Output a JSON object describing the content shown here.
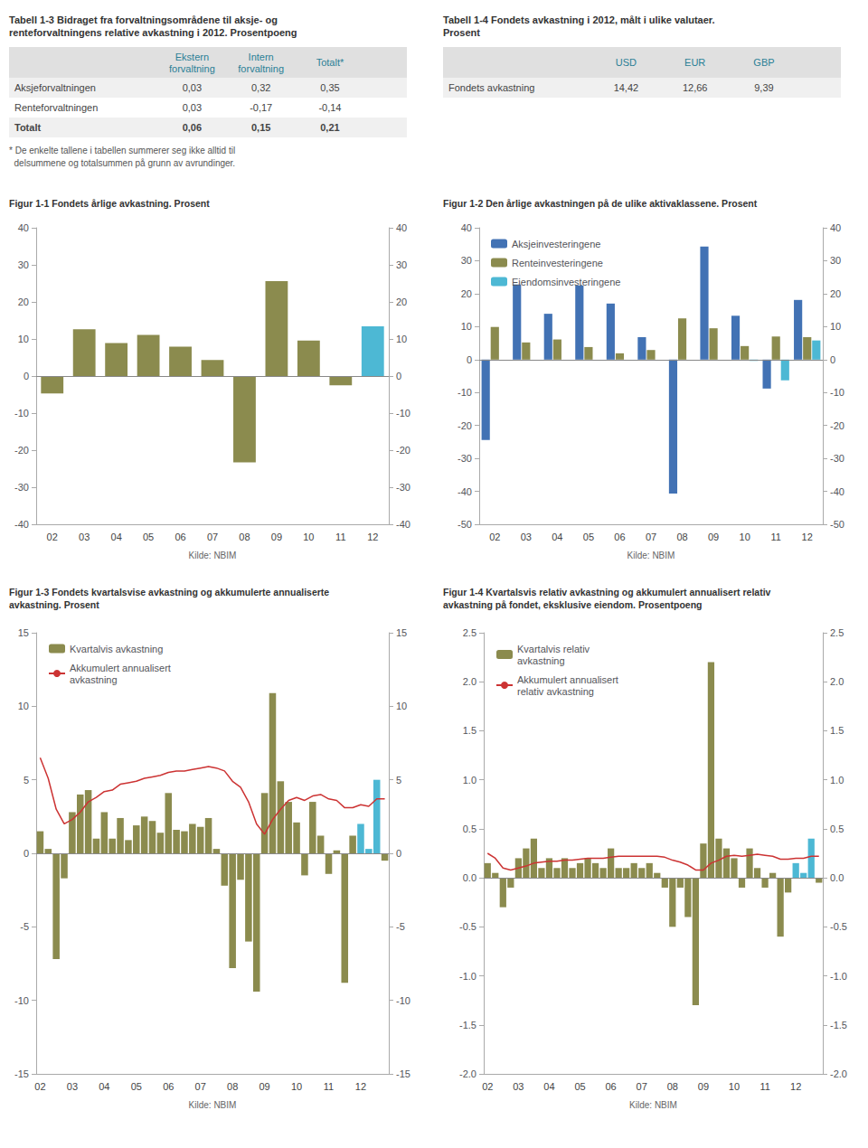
{
  "chart_data": [
    {
      "type": "table",
      "title": "Tabell 1-3 Bidraget fra forvaltningsområdene til aksje- og\nrenteforvaltningens relative avkastning i 2012. Prosentpoeng",
      "columns": [
        null,
        "Ekstern\nforvaltning",
        "Intern\nforvaltning",
        "Totalt*"
      ],
      "rows": [
        [
          "Aksjeforvaltningen",
          "0,03",
          "0,32",
          "0,35"
        ],
        [
          "Renteforvaltningen",
          "0,03",
          "-0,17",
          "-0,14"
        ],
        [
          "Totalt",
          "0,06",
          "0,15",
          "0,21"
        ]
      ],
      "annotations": [
        "* De enkelte tallene i tabellen summerer seg ikke alltid til",
        "  delsummene og totalsummen på grunn av avrundinger."
      ]
    },
    {
      "type": "table",
      "title": "Tabell 1-4 Fondets avkastning i 2012, målt i ulike valutaer.\nProsent",
      "columns": [
        null,
        "USD",
        "EUR",
        "GBP"
      ],
      "rows": [
        [
          "Fondets avkastning",
          "14,42",
          "12,66",
          "9,39"
        ]
      ]
    },
    {
      "type": "bar",
      "title": "Figur 1-1 Fondets årlige avkastning. Prosent",
      "categories": [
        "02",
        "03",
        "04",
        "05",
        "06",
        "07",
        "08",
        "09",
        "10",
        "11",
        "12"
      ],
      "values": [
        -4.7,
        12.6,
        8.9,
        11.1,
        7.9,
        4.3,
        -23.3,
        25.6,
        9.6,
        -2.5,
        13.4
      ],
      "colors": [
        "#8b8b4e",
        "#8b8b4e",
        "#8b8b4e",
        "#8b8b4e",
        "#8b8b4e",
        "#8b8b4e",
        "#8b8b4e",
        "#8b8b4e",
        "#8b8b4e",
        "#8b8b4e",
        "#4db8d4"
      ],
      "ylim": [
        -40,
        40
      ],
      "yticks": [
        -40,
        -30,
        -20,
        -10,
        0,
        10,
        20,
        30,
        40
      ],
      "y2lim": [
        -40,
        40
      ],
      "y2ticks": [
        -40,
        -30,
        -20,
        -10,
        0,
        10,
        20,
        30,
        40
      ],
      "grid": false,
      "annotations": [
        "Kilde: NBIM"
      ]
    },
    {
      "type": "bar",
      "title": "Figur 1-2 Den årlige avkastningen på de ulike aktivaklassene. Prosent",
      "categories": [
        "02",
        "03",
        "04",
        "05",
        "06",
        "07",
        "08",
        "09",
        "10",
        "11",
        "12"
      ],
      "series": [
        {
          "name": "Aksjeinvesteringene",
          "color": "#4272b4",
          "values": [
            -24.4,
            22.8,
            13.9,
            22.5,
            17.0,
            6.8,
            -40.7,
            34.3,
            13.3,
            -8.8,
            18.1
          ]
        },
        {
          "name": "Renteinvesteringene",
          "color": "#8b8b4e",
          "values": [
            9.9,
            5.2,
            6.1,
            3.8,
            1.9,
            2.9,
            12.5,
            9.5,
            4.1,
            7.0,
            6.8
          ]
        },
        {
          "name": "Eiendomsinvesteringene",
          "color": "#4db8d4",
          "values": [
            0,
            0,
            0,
            0,
            0,
            0,
            0,
            0,
            -0.4,
            -6.3,
            5.8
          ]
        }
      ],
      "ylim": [
        -50,
        40
      ],
      "yticks": [
        -50,
        -40,
        -30,
        -20,
        -10,
        0,
        10,
        20,
        30,
        40
      ],
      "y2lim": [
        -50,
        40
      ],
      "y2ticks": [
        -50,
        -40,
        -30,
        -20,
        -10,
        0,
        10,
        20,
        30,
        40
      ],
      "grid": false,
      "legend": "upper left",
      "annotations": [
        "Kilde: NBIM"
      ]
    },
    {
      "type": "bar",
      "title": "Figur 1-3 Fondets kvartalsvise avkastning og akkumulerte annualiserte\navkastning. Prosent",
      "categories": [
        "02",
        null,
        null,
        null,
        "03",
        null,
        null,
        null,
        "04",
        null,
        null,
        null,
        "05",
        null,
        null,
        null,
        "06",
        null,
        null,
        null,
        "07",
        null,
        null,
        null,
        "08",
        null,
        null,
        null,
        "09",
        null,
        null,
        null,
        "10",
        null,
        null,
        null,
        "11",
        null,
        null,
        null,
        "12",
        null,
        null,
        null
      ],
      "series": [
        {
          "name": "Kvartalvis avkastning",
          "type": "bar",
          "color": "#8b8b4e",
          "colors": [
            "#8b8b4e",
            "#8b8b4e",
            "#8b8b4e",
            "#8b8b4e",
            "#8b8b4e",
            "#8b8b4e",
            "#8b8b4e",
            "#8b8b4e",
            "#8b8b4e",
            "#8b8b4e",
            "#8b8b4e",
            "#8b8b4e",
            "#8b8b4e",
            "#8b8b4e",
            "#8b8b4e",
            "#8b8b4e",
            "#8b8b4e",
            "#8b8b4e",
            "#8b8b4e",
            "#8b8b4e",
            "#8b8b4e",
            "#8b8b4e",
            "#8b8b4e",
            "#8b8b4e",
            "#8b8b4e",
            "#8b8b4e",
            "#8b8b4e",
            "#8b8b4e",
            "#8b8b4e",
            "#8b8b4e",
            "#8b8b4e",
            "#8b8b4e",
            "#8b8b4e",
            "#8b8b4e",
            "#8b8b4e",
            "#8b8b4e",
            "#8b8b4e",
            "#8b8b4e",
            "#8b8b4e",
            "#8b8b4e",
            "#4db8d4",
            "#4db8d4",
            "#4db8d4",
            "#8b8b4e"
          ],
          "values": [
            1.5,
            0.3,
            -7.2,
            -1.7,
            2.8,
            4.0,
            4.3,
            1.0,
            2.8,
            1.0,
            2.4,
            0.9,
            1.9,
            2.5,
            2.2,
            1.4,
            4.1,
            1.6,
            1.5,
            2.0,
            1.8,
            2.4,
            0.3,
            -2.2,
            -7.8,
            -1.8,
            -6.0,
            -9.4,
            4.1,
            10.9,
            4.9,
            3.5,
            2.1,
            -1.5,
            3.5,
            1.2,
            -1.4,
            0.2,
            -8.8,
            1.2,
            2.0,
            0.3,
            5.0,
            -0.5
          ]
        },
        {
          "name": "Akkumulert annualisert\navkastning",
          "type": "line",
          "color": "#cc3333",
          "values": [
            6.5,
            5.1,
            3.0,
            2.0,
            2.3,
            2.8,
            3.5,
            3.8,
            4.2,
            4.3,
            4.7,
            4.8,
            4.9,
            5.1,
            5.2,
            5.3,
            5.5,
            5.6,
            5.6,
            5.7,
            5.8,
            5.9,
            5.8,
            5.6,
            4.9,
            4.5,
            3.5,
            2.0,
            1.3,
            2.3,
            3.0,
            3.6,
            3.8,
            3.6,
            3.9,
            4.0,
            3.7,
            3.6,
            3.1,
            3.1,
            3.3,
            3.2,
            3.7,
            3.7
          ]
        }
      ],
      "ylim": [
        -15,
        15
      ],
      "yticks": [
        -15,
        -10,
        -5,
        0,
        5,
        10,
        15
      ],
      "y2lim": [
        -15,
        15
      ],
      "y2ticks": [
        -15,
        -10,
        -5,
        0,
        5,
        10,
        15
      ],
      "grid": false,
      "legend": "upper left",
      "annotations": [
        "Kilde: NBIM"
      ]
    },
    {
      "type": "bar",
      "title": "Figur 1-4 Kvartalsvis relativ avkastning og akkumulert annualisert relativ\navkastning på fondet, eksklusive eiendom. Prosentpoeng",
      "categories": [
        "02",
        null,
        null,
        null,
        "03",
        null,
        null,
        null,
        "04",
        null,
        null,
        null,
        "05",
        null,
        null,
        null,
        "06",
        null,
        null,
        null,
        "07",
        null,
        null,
        null,
        "08",
        null,
        null,
        null,
        "09",
        null,
        null,
        null,
        "10",
        null,
        null,
        null,
        "11",
        null,
        null,
        null,
        "12",
        null,
        null,
        null
      ],
      "series": [
        {
          "name": "Kvartalvis relativ\navkastning",
          "type": "bar",
          "color": "#8b8b4e",
          "colors": [
            "#8b8b4e",
            "#8b8b4e",
            "#8b8b4e",
            "#8b8b4e",
            "#8b8b4e",
            "#8b8b4e",
            "#8b8b4e",
            "#8b8b4e",
            "#8b8b4e",
            "#8b8b4e",
            "#8b8b4e",
            "#8b8b4e",
            "#8b8b4e",
            "#8b8b4e",
            "#8b8b4e",
            "#8b8b4e",
            "#8b8b4e",
            "#8b8b4e",
            "#8b8b4e",
            "#8b8b4e",
            "#8b8b4e",
            "#8b8b4e",
            "#8b8b4e",
            "#8b8b4e",
            "#8b8b4e",
            "#8b8b4e",
            "#8b8b4e",
            "#8b8b4e",
            "#8b8b4e",
            "#8b8b4e",
            "#8b8b4e",
            "#8b8b4e",
            "#8b8b4e",
            "#8b8b4e",
            "#8b8b4e",
            "#8b8b4e",
            "#8b8b4e",
            "#8b8b4e",
            "#8b8b4e",
            "#8b8b4e",
            "#4db8d4",
            "#4db8d4",
            "#4db8d4",
            "#8b8b4e"
          ],
          "values": [
            0.15,
            0.05,
            -0.3,
            -0.1,
            0.2,
            0.3,
            0.4,
            0.1,
            0.2,
            0.1,
            0.2,
            0.1,
            0.15,
            0.2,
            0.15,
            0.1,
            0.3,
            0.1,
            0.1,
            0.15,
            0.1,
            0.15,
            0.05,
            -0.1,
            -0.5,
            -0.1,
            -0.4,
            -1.3,
            0.35,
            2.2,
            0.4,
            0.3,
            0.2,
            -0.1,
            0.3,
            0.1,
            -0.1,
            0.05,
            -0.6,
            -0.15,
            0.15,
            0.05,
            0.4,
            -0.05
          ]
        },
        {
          "name": "Akkumulert annualisert\nrelativ avkastning",
          "type": "line",
          "color": "#cc3333",
          "values": [
            0.25,
            0.2,
            0.1,
            0.08,
            0.1,
            0.12,
            0.15,
            0.16,
            0.17,
            0.17,
            0.18,
            0.18,
            0.19,
            0.2,
            0.2,
            0.2,
            0.21,
            0.22,
            0.22,
            0.22,
            0.22,
            0.22,
            0.22,
            0.21,
            0.18,
            0.16,
            0.13,
            0.08,
            0.08,
            0.15,
            0.18,
            0.22,
            0.23,
            0.22,
            0.23,
            0.24,
            0.23,
            0.22,
            0.19,
            0.19,
            0.2,
            0.2,
            0.22,
            0.22
          ]
        }
      ],
      "ylim": [
        -2,
        2.5
      ],
      "yticks": [
        {
          "value": -2,
          "label": "-2.0"
        },
        {
          "value": -1.5,
          "label": "-1.5"
        },
        {
          "value": -1,
          "label": "-1.0"
        },
        {
          "value": -0.5,
          "label": "-0.5"
        },
        {
          "value": 0,
          "label": "0.0"
        },
        {
          "value": 0.5,
          "label": "0.5"
        },
        {
          "value": 1,
          "label": "1.0"
        },
        {
          "value": 1.5,
          "label": "1.5"
        },
        {
          "value": 2,
          "label": "2.0"
        },
        {
          "value": 2.5,
          "label": "2.5"
        }
      ],
      "y2lim": [
        -2,
        2.5
      ],
      "y2ticks": [
        {
          "value": -2,
          "label": "-2.0"
        },
        {
          "value": -1.5,
          "label": "-1.5"
        },
        {
          "value": -1,
          "label": "-1.0"
        },
        {
          "value": -0.5,
          "label": "-0.5"
        },
        {
          "value": 0,
          "label": "0.0"
        },
        {
          "value": 0.5,
          "label": "0.5"
        },
        {
          "value": 1,
          "label": "1.0"
        },
        {
          "value": 1.5,
          "label": "1.5"
        },
        {
          "value": 2,
          "label": "2.0"
        },
        {
          "value": 2.5,
          "label": "2.5"
        }
      ],
      "grid": false,
      "legend": "upper left",
      "annotations": [
        "Kilde: NBIM"
      ]
    }
  ]
}
